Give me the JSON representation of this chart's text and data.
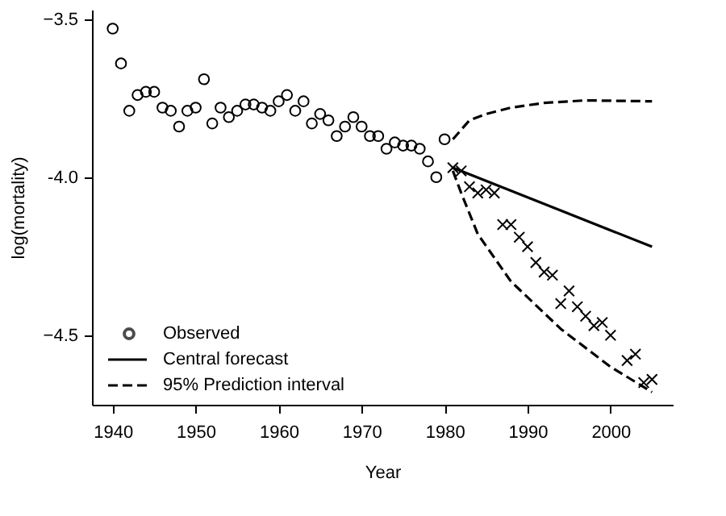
{
  "chart_data": {
    "type": "scatter",
    "xlabel": "Year",
    "ylabel": "log(mortality)",
    "xlim": [
      1937.5,
      2007.5
    ],
    "ylim": [
      -4.72,
      -3.47
    ],
    "xticks": [
      1940,
      1950,
      1960,
      1970,
      1980,
      1990,
      2000
    ],
    "yticks": [
      -3.5,
      {
        "value": -4.0,
        "label": "-4.0"
      },
      -4.5
    ],
    "grid": false,
    "legend": "bottom left",
    "series": [
      {
        "name": "Observed",
        "marker": "circle",
        "color": "#000000",
        "x": [
          1940,
          1941,
          1942,
          1943,
          1944,
          1945,
          1946,
          1947,
          1948,
          1949,
          1950,
          1951,
          1952,
          1953,
          1954,
          1955,
          1956,
          1957,
          1958,
          1959,
          1960,
          1961,
          1962,
          1963,
          1964,
          1965,
          1966,
          1967,
          1968,
          1969,
          1970,
          1971,
          1972,
          1973,
          1974,
          1975,
          1976,
          1977,
          1978,
          1979,
          1980
        ],
        "values": [
          -3.53,
          -3.64,
          -3.79,
          -3.74,
          -3.73,
          -3.73,
          -3.78,
          -3.79,
          -3.84,
          -3.79,
          -3.78,
          -3.69,
          -3.83,
          -3.78,
          -3.81,
          -3.79,
          -3.77,
          -3.77,
          -3.78,
          -3.79,
          -3.76,
          -3.74,
          -3.79,
          -3.76,
          -3.83,
          -3.8,
          -3.82,
          -3.87,
          -3.84,
          -3.81,
          -3.84,
          -3.87,
          -3.87,
          -3.91,
          -3.89,
          -3.9,
          -3.9,
          -3.91,
          -3.95,
          -4.0,
          -3.88
        ]
      },
      {
        "marker": "cross",
        "color": "#000000",
        "x": [
          1981,
          1982,
          1983,
          1984,
          1985,
          1986,
          1987,
          1988,
          1989,
          1990,
          1991,
          1992,
          1993,
          1994,
          1995,
          1996,
          1997,
          1998,
          1999,
          2000,
          2002,
          2003,
          2004,
          2005
        ],
        "values": [
          -3.97,
          -3.98,
          -4.03,
          -4.05,
          -4.04,
          -4.05,
          -4.15,
          -4.15,
          -4.19,
          -4.22,
          -4.27,
          -4.3,
          -4.31,
          -4.4,
          -4.36,
          -4.41,
          -4.44,
          -4.47,
          -4.46,
          -4.5,
          -4.58,
          -4.56,
          -4.65,
          -4.64
        ]
      },
      {
        "name": "Central forecast",
        "type": "line",
        "line_style": "solid",
        "color": "#000000",
        "x": [
          1981,
          2005
        ],
        "values": [
          -3.97,
          -4.22
        ]
      },
      {
        "name": "95% Prediction interval",
        "type": "line",
        "line_style": "dashed",
        "color": "#000000",
        "x": [
          1981,
          1982,
          1983,
          1985,
          1988,
          1992,
          1997,
          2005
        ],
        "values": [
          -3.88,
          -3.85,
          -3.82,
          -3.8,
          -3.78,
          -3.765,
          -3.757,
          -3.76
        ]
      },
      {
        "type": "line",
        "line_style": "dashed",
        "color": "#000000",
        "x": [
          1981,
          1982,
          1984,
          1988,
          1994,
          2000,
          2005
        ],
        "values": [
          -3.98,
          -4.05,
          -4.18,
          -4.33,
          -4.48,
          -4.6,
          -4.68
        ]
      }
    ]
  }
}
